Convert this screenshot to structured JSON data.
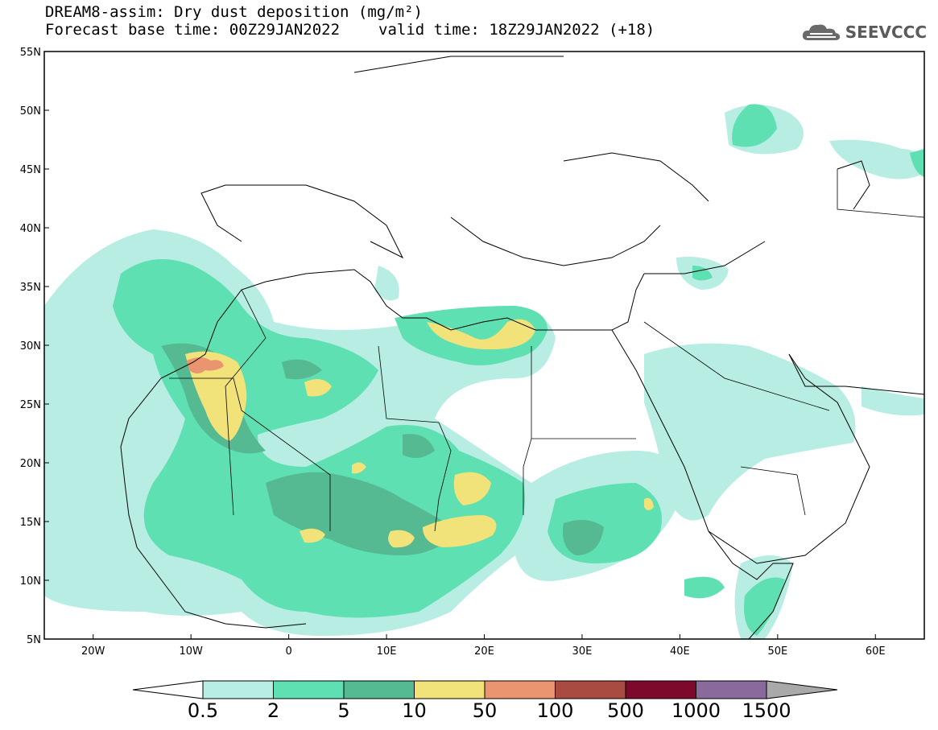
{
  "header": {
    "title": "DREAM8-assim: Dry dust deposition (mg/m²)",
    "base_time": "Forecast base time: 00Z29JAN2022",
    "valid_time": "valid time: 18Z29JAN2022 (+18)",
    "logo_text": "SEEVCCC"
  },
  "map": {
    "lon_range": [
      -25,
      65
    ],
    "lat_range": [
      5,
      55
    ],
    "lat_labels": [
      "55N",
      "50N",
      "45N",
      "40N",
      "35N",
      "30N",
      "25N",
      "20N",
      "15N",
      "10N",
      "5N"
    ],
    "lon_labels": [
      "20W",
      "10W",
      "0",
      "10E",
      "20E",
      "30E",
      "40E",
      "50E",
      "60E"
    ]
  },
  "colorbar": {
    "labels": [
      "0.5",
      "2",
      "5",
      "10",
      "50",
      "100",
      "500",
      "1000",
      "1500"
    ],
    "colors": [
      "#b7ede3",
      "#5fe0b2",
      "#55b991",
      "#f1e27a",
      "#eb9470",
      "#a94b40",
      "#7d0a2c",
      "#8a6a9d"
    ],
    "over_color": "#a9a9a9",
    "under_color": "#ffffff"
  }
}
